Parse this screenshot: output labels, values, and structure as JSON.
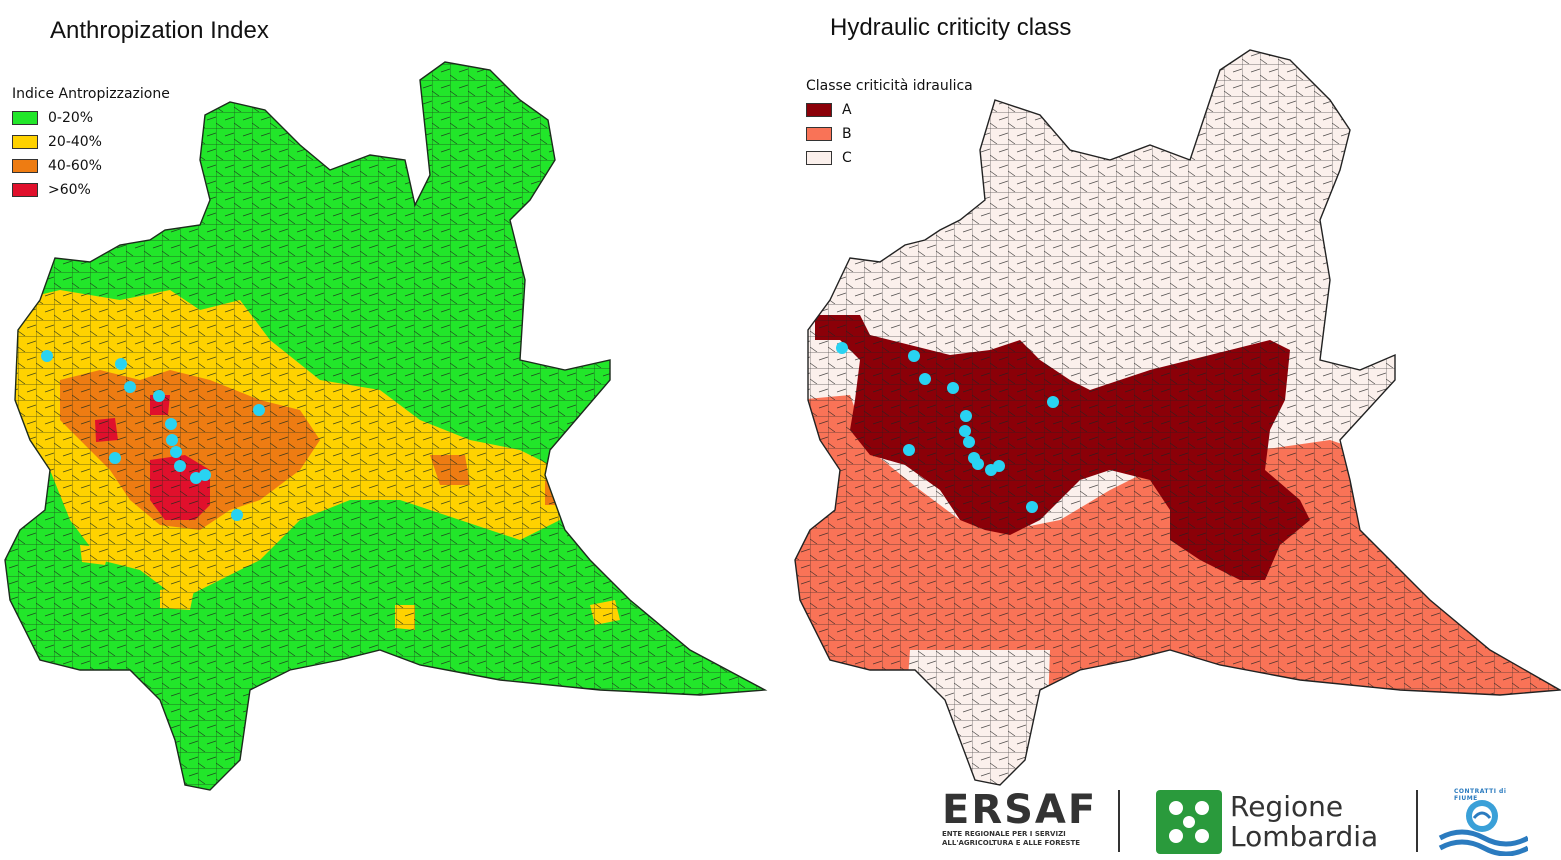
{
  "titles": {
    "left": "Anthropization Index",
    "right": "Hydraulic criticity class"
  },
  "legend_left": {
    "title": "Indice Antropizzazione",
    "items": [
      {
        "label": "0-20%",
        "color": "#22e62a"
      },
      {
        "label": "20-40%",
        "color": "#ffd200"
      },
      {
        "label": "40-60%",
        "color": "#ee7c12"
      },
      {
        "label": ">60%",
        "color": "#e0102c"
      }
    ]
  },
  "legend_right": {
    "title": "Classe criticità idraulica",
    "items": [
      {
        "label": "A",
        "color": "#8b0008"
      },
      {
        "label": "B",
        "color": "#f97357"
      },
      {
        "label": "C",
        "color": "#fbf0ec"
      }
    ]
  },
  "marker_color": "#29d3f2",
  "logos": {
    "ersaf_name": "ERSAF",
    "ersaf_sub_1": "ENTE REGIONALE PER I SERVIZI",
    "ersaf_sub_2": "ALL'AGRICOLTURA E ALLE FORESTE",
    "regione_1": "Regione",
    "regione_2": "Lombardia",
    "contratti": "CONTRATTI di FIUME"
  }
}
